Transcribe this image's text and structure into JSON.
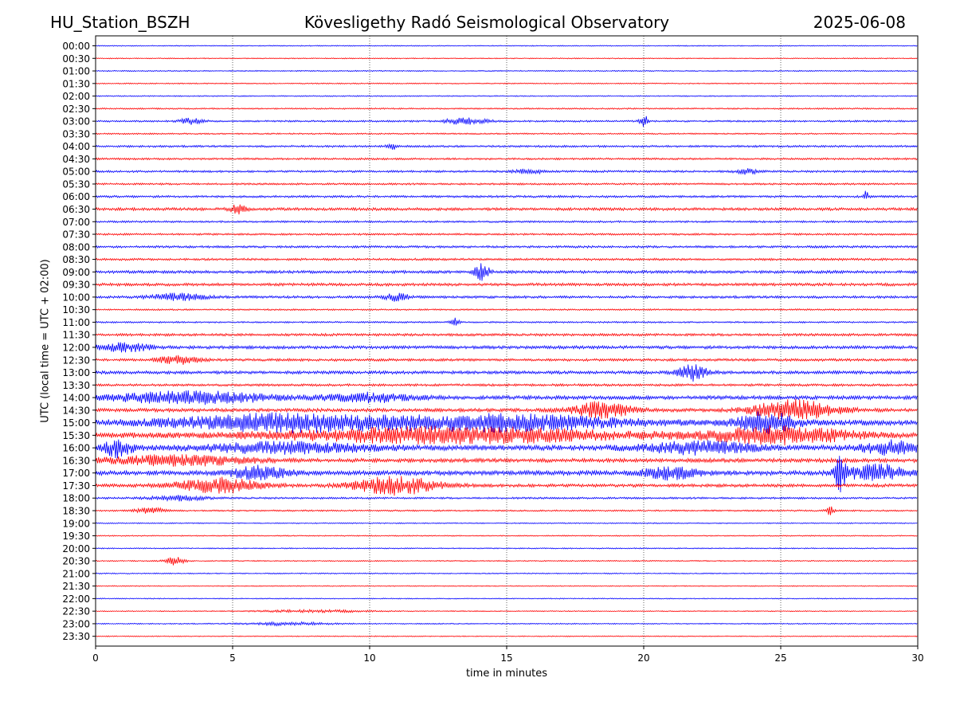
{
  "header": {
    "station": "HU_Station_BSZH",
    "title": "Kövesligethy Radó Seismological Observatory",
    "date": "2025-06-08"
  },
  "chart_data": {
    "type": "line",
    "title": "Kövesligethy Radó Seismological Observatory",
    "xlabel": "time in minutes",
    "ylabel": "UTC (local time = UTC + 02:00)",
    "xlim": [
      0,
      30
    ],
    "xticks": [
      0,
      5,
      10,
      15,
      20,
      25,
      30
    ],
    "vertical_gridlines": "dotted",
    "colors": [
      "#0000ff",
      "#ff0000"
    ],
    "rows": [
      "00:00",
      "00:30",
      "01:00",
      "01:30",
      "02:00",
      "02:30",
      "03:00",
      "03:30",
      "04:00",
      "04:30",
      "05:00",
      "05:30",
      "06:00",
      "06:30",
      "07:00",
      "07:30",
      "08:00",
      "08:30",
      "09:00",
      "09:30",
      "10:00",
      "10:30",
      "11:00",
      "11:30",
      "12:00",
      "12:30",
      "13:00",
      "13:30",
      "14:00",
      "14:30",
      "15:00",
      "15:30",
      "16:00",
      "16:30",
      "17:00",
      "17:30",
      "18:00",
      "18:30",
      "19:00",
      "19:30",
      "20:00",
      "20:30",
      "21:00",
      "21:30",
      "22:00",
      "22:30",
      "23:00",
      "23:30"
    ],
    "noise_level": [
      0.6,
      0.6,
      0.7,
      0.7,
      0.7,
      0.9,
      1.1,
      0.9,
      1.3,
      1.2,
      1.3,
      1.2,
      1.4,
      1.8,
      1.2,
      1.2,
      1.4,
      1.4,
      1.8,
      1.8,
      1.6,
      1.0,
      1.0,
      1.6,
      2.0,
      1.6,
      2.0,
      1.5,
      2.4,
      2.2,
      3.5,
      3.2,
      3.2,
      2.5,
      2.8,
      2.0,
      1.2,
      1.0,
      0.7,
      0.7,
      0.7,
      0.7,
      0.7,
      0.6,
      0.6,
      0.6,
      0.7,
      0.6
    ],
    "events": [
      {
        "row": 6,
        "minute": 3.5,
        "amplitude": 4,
        "duration": 0.8
      },
      {
        "row": 6,
        "minute": 13.5,
        "amplitude": 4,
        "duration": 1.5
      },
      {
        "row": 6,
        "minute": 20.0,
        "amplitude": 8,
        "duration": 0.3
      },
      {
        "row": 8,
        "minute": 10.8,
        "amplitude": 4,
        "duration": 0.4
      },
      {
        "row": 10,
        "minute": 15.8,
        "amplitude": 3,
        "duration": 1.0
      },
      {
        "row": 10,
        "minute": 23.8,
        "amplitude": 3,
        "duration": 0.8
      },
      {
        "row": 12,
        "minute": 28.1,
        "amplitude": 7,
        "duration": 0.2
      },
      {
        "row": 13,
        "minute": 5.2,
        "amplitude": 5,
        "duration": 0.6
      },
      {
        "row": 18,
        "minute": 14.1,
        "amplitude": 12,
        "duration": 0.5
      },
      {
        "row": 20,
        "minute": 3.0,
        "amplitude": 4,
        "duration": 2.0
      },
      {
        "row": 20,
        "minute": 11.0,
        "amplitude": 5,
        "duration": 0.8
      },
      {
        "row": 22,
        "minute": 13.1,
        "amplitude": 5,
        "duration": 0.3
      },
      {
        "row": 24,
        "minute": 1.0,
        "amplitude": 5,
        "duration": 2.0
      },
      {
        "row": 25,
        "minute": 3.0,
        "amplitude": 5,
        "duration": 1.5
      },
      {
        "row": 26,
        "minute": 21.8,
        "amplitude": 10,
        "duration": 1.0
      },
      {
        "row": 28,
        "minute": 3.5,
        "amplitude": 7,
        "duration": 6.0
      },
      {
        "row": 28,
        "minute": 10.0,
        "amplitude": 5,
        "duration": 3.0
      },
      {
        "row": 29,
        "minute": 18.5,
        "amplitude": 10,
        "duration": 2.0
      },
      {
        "row": 29,
        "minute": 25.5,
        "amplitude": 12,
        "duration": 3.0
      },
      {
        "row": 30,
        "minute": 7.0,
        "amplitude": 10,
        "duration": 8.0
      },
      {
        "row": 30,
        "minute": 15.0,
        "amplitude": 9,
        "duration": 8.0
      },
      {
        "row": 30,
        "minute": 24.5,
        "amplitude": 12,
        "duration": 2.0
      },
      {
        "row": 31,
        "minute": 13.0,
        "amplitude": 9,
        "duration": 12.0
      },
      {
        "row": 31,
        "minute": 25.0,
        "amplitude": 10,
        "duration": 5.0
      },
      {
        "row": 32,
        "minute": 0.8,
        "amplitude": 10,
        "duration": 1.0
      },
      {
        "row": 32,
        "minute": 7.0,
        "amplitude": 6,
        "duration": 6.0
      },
      {
        "row": 32,
        "minute": 22.0,
        "amplitude": 7,
        "duration": 4.0
      },
      {
        "row": 32,
        "minute": 29.0,
        "amplitude": 8,
        "duration": 2.0
      },
      {
        "row": 33,
        "minute": 3.0,
        "amplitude": 6,
        "duration": 5.0
      },
      {
        "row": 34,
        "minute": 6.0,
        "amplitude": 8,
        "duration": 2.0
      },
      {
        "row": 34,
        "minute": 21.0,
        "amplitude": 7,
        "duration": 2.0
      },
      {
        "row": 34,
        "minute": 27.2,
        "amplitude": 20,
        "duration": 0.5
      },
      {
        "row": 34,
        "minute": 28.5,
        "amplitude": 10,
        "duration": 2.0
      },
      {
        "row": 35,
        "minute": 4.5,
        "amplitude": 9,
        "duration": 3.0
      },
      {
        "row": 35,
        "minute": 11.0,
        "amplitude": 11,
        "duration": 3.0
      },
      {
        "row": 36,
        "minute": 3.0,
        "amplitude": 3,
        "duration": 2.0
      },
      {
        "row": 37,
        "minute": 2.0,
        "amplitude": 4,
        "duration": 1.0
      },
      {
        "row": 37,
        "minute": 26.8,
        "amplitude": 5,
        "duration": 0.3
      },
      {
        "row": 41,
        "minute": 2.9,
        "amplitude": 5,
        "duration": 0.7
      },
      {
        "row": 45,
        "minute": 8.0,
        "amplitude": 1.5,
        "duration": 4.0
      },
      {
        "row": 46,
        "minute": 7.0,
        "amplitude": 2,
        "duration": 3.0
      }
    ]
  }
}
